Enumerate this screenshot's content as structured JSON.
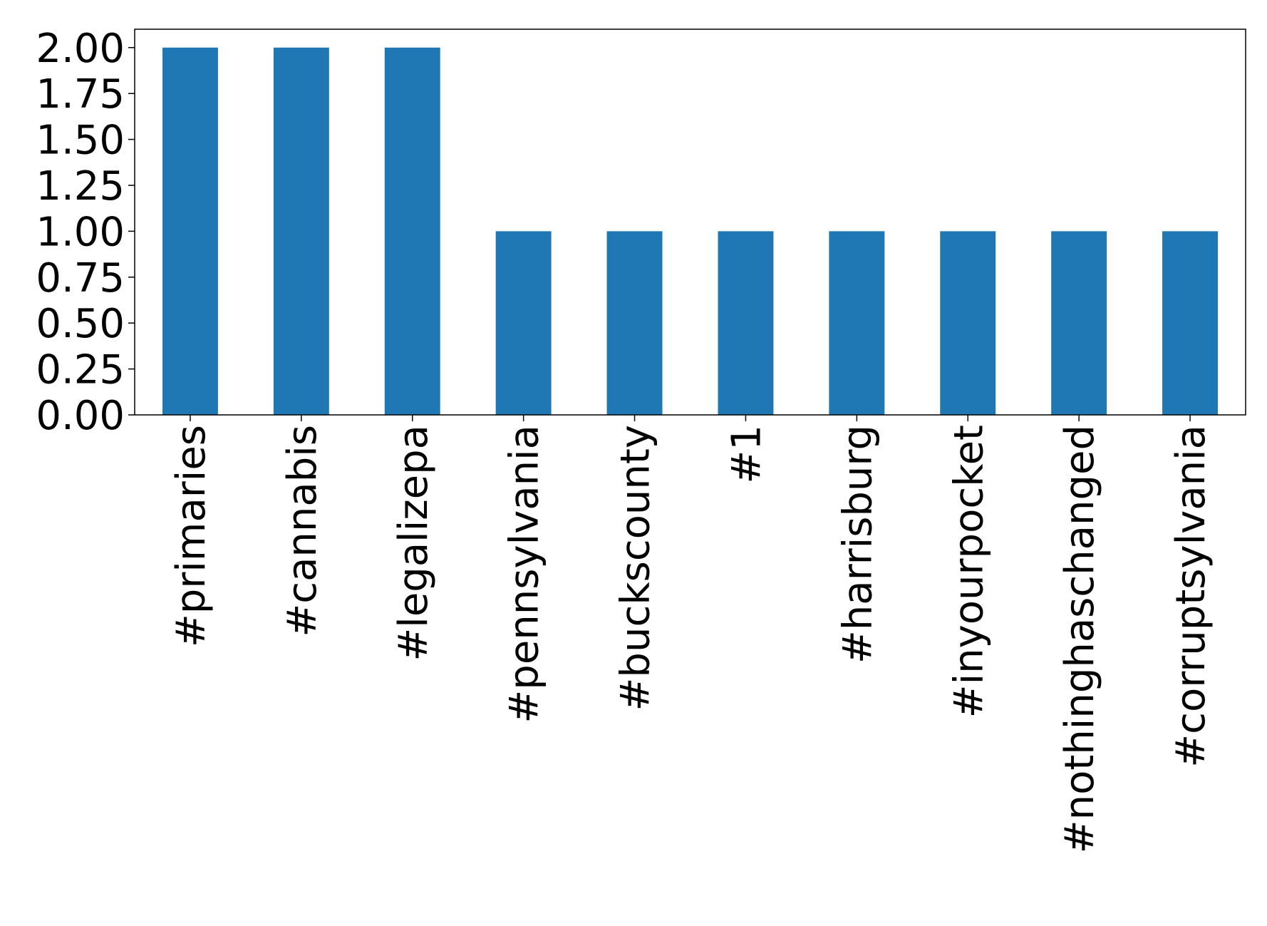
{
  "chart_data": {
    "type": "bar",
    "categories": [
      "#primaries",
      "#cannabis",
      "#legalizepa",
      "#pennsylvania",
      "#buckscounty",
      "#1",
      "#harrisburg",
      "#inyourpocket",
      "#nothinghaschanged",
      "#corruptsylvania"
    ],
    "values": [
      2,
      2,
      2,
      1,
      1,
      1,
      1,
      1,
      1,
      1
    ],
    "color": "#1f77b4",
    "ylim": [
      0,
      2.1
    ],
    "yticks": [
      {
        "value": 0,
        "label": "0.00"
      },
      {
        "value": 0.25,
        "label": "0.25"
      },
      {
        "value": 0.5,
        "label": "0.50"
      },
      {
        "value": 0.75,
        "label": "0.75"
      },
      {
        "value": 1,
        "label": "1.00"
      },
      {
        "value": 1.25,
        "label": "1.25"
      },
      {
        "value": 1.5,
        "label": "1.50"
      },
      {
        "value": 1.75,
        "label": "1.75"
      },
      {
        "value": 2,
        "label": "2.00"
      }
    ],
    "grid": false
  }
}
